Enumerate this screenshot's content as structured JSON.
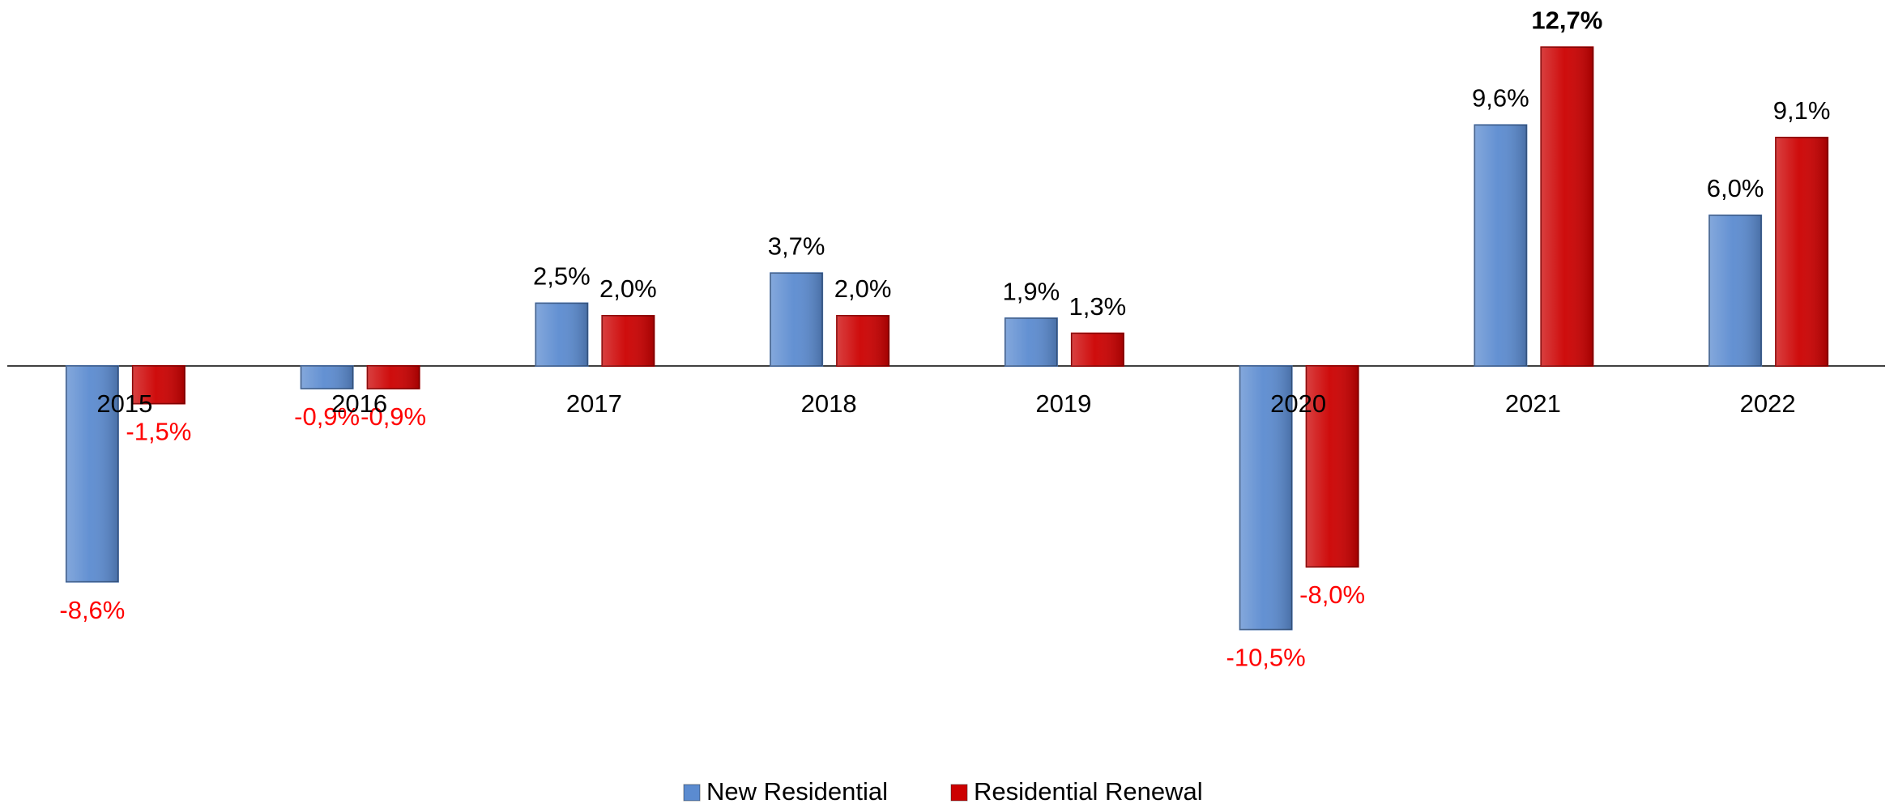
{
  "chart_data": {
    "type": "bar",
    "categories": [
      "2015",
      "2016",
      "2017",
      "2018",
      "2019",
      "2020",
      "2021",
      "2022"
    ],
    "series": [
      {
        "name": "New Residential",
        "color": "#5b8bd0",
        "values": [
          -8.6,
          -0.9,
          2.5,
          3.7,
          1.9,
          -10.5,
          9.6,
          6.0
        ],
        "value_labels": [
          "-8,6%",
          "-0,9%",
          "2,5%",
          "3,7%",
          "1,9%",
          "-10,5%",
          "9,6%",
          "6,0%"
        ]
      },
      {
        "name": "Residential Renewal",
        "color": "#cc0000",
        "values": [
          -1.5,
          -0.9,
          2.0,
          2.0,
          1.3,
          -8.0,
          12.7,
          9.1
        ],
        "value_labels": [
          "-1,5%",
          "-0,9%",
          "2,0%",
          "2,0%",
          "1,3%",
          "-8,0%",
          "12,7%",
          "9,1%"
        ]
      }
    ],
    "ylim": [
      -12,
      14
    ],
    "negative_label_color": "#ff0000",
    "legend": "bottom"
  }
}
